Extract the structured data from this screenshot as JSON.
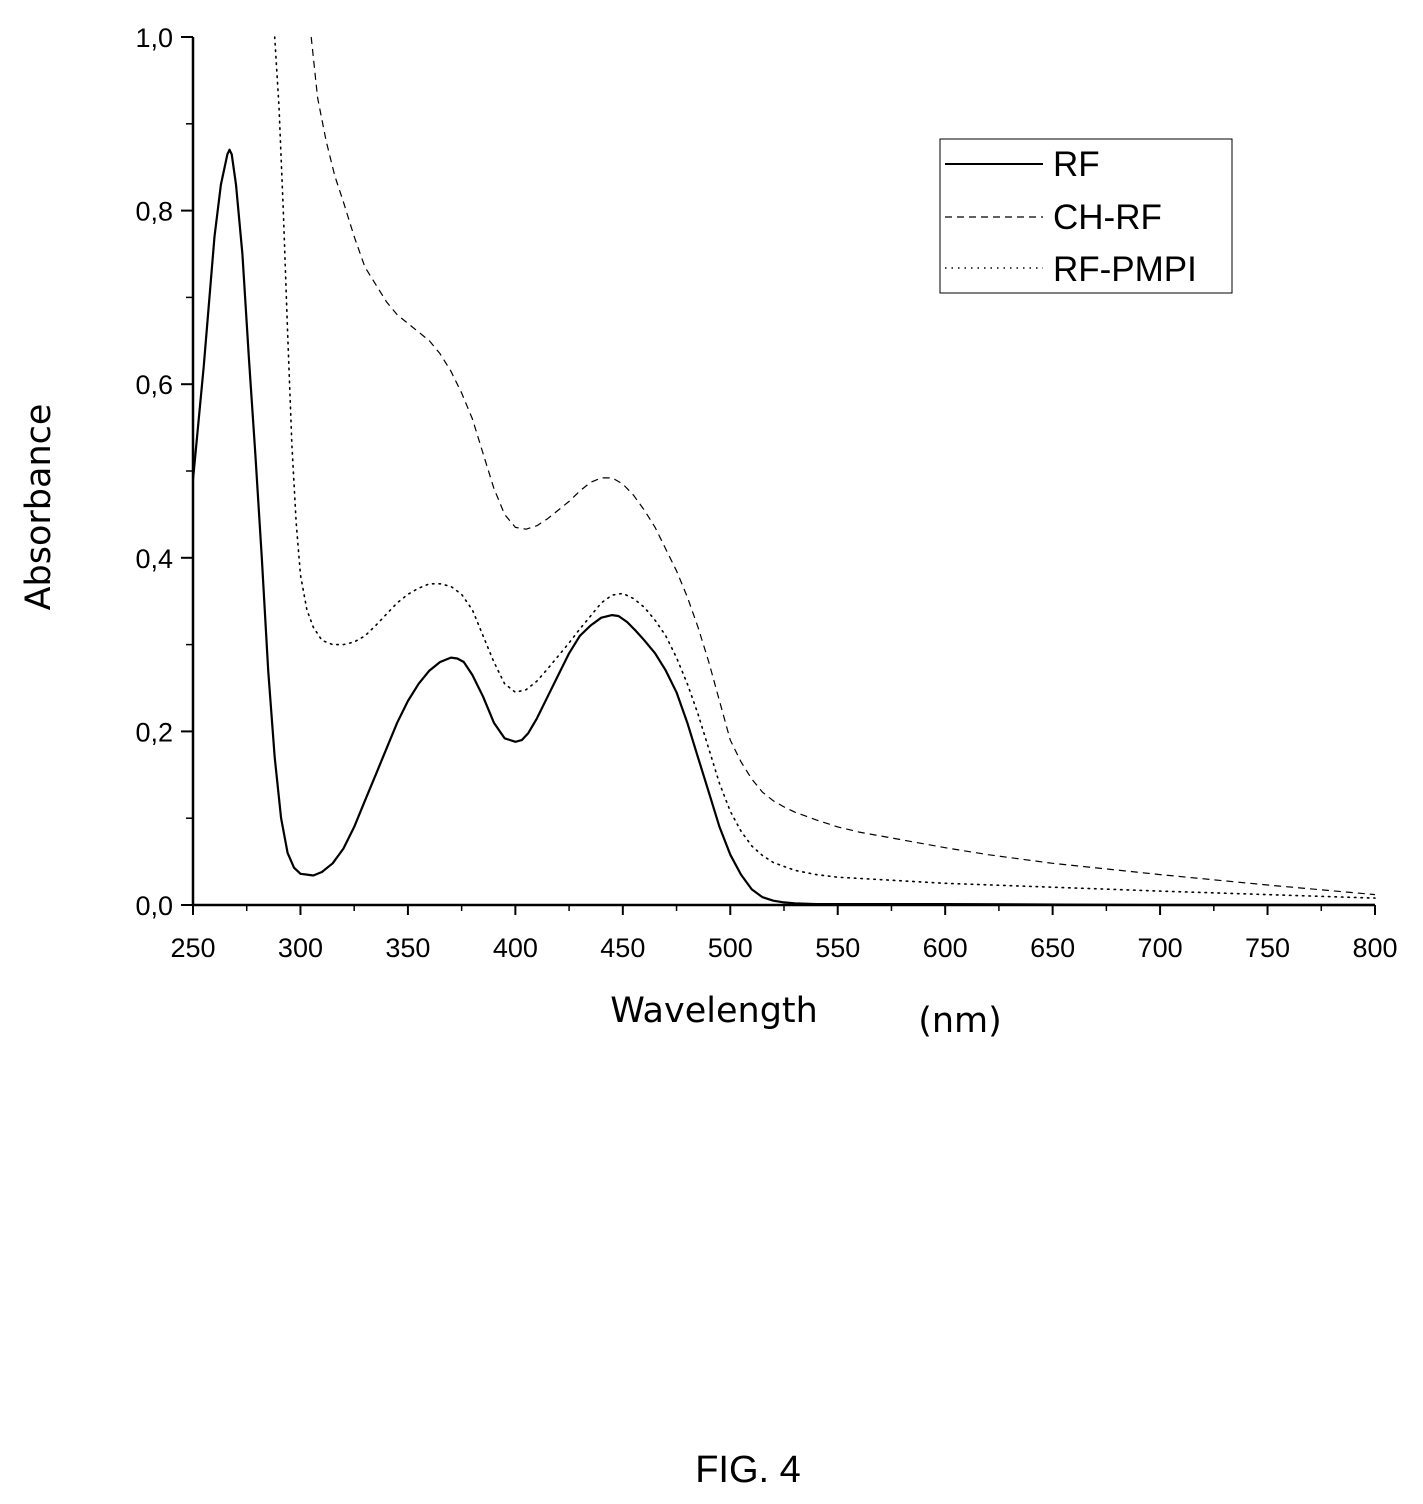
{
  "chart_data": {
    "type": "line",
    "xlabel": "Wavelength",
    "xunit": "(nm)",
    "ylabel": "Absorbance",
    "xlim": [
      250,
      800
    ],
    "ylim": [
      0,
      1.0
    ],
    "xticks": [
      250,
      300,
      350,
      400,
      450,
      500,
      550,
      600,
      650,
      700,
      750,
      800
    ],
    "xtick_labels": [
      "250",
      "300",
      "350",
      "400",
      "450",
      "500",
      "550",
      "600",
      "650",
      "700",
      "750",
      "800"
    ],
    "yticks": [
      0,
      0.2,
      0.4,
      0.6,
      0.8,
      1.0
    ],
    "ytick_labels": [
      "0,0",
      "0,2",
      "0,4",
      "0,6",
      "0,8",
      "1,0"
    ],
    "grid": false,
    "legend_position": "top-right",
    "series": [
      {
        "name": "RF",
        "style": "solid",
        "x": [
          250,
          255,
          260,
          263,
          266,
          267,
          268,
          270,
          273,
          276,
          279,
          282,
          285,
          288,
          291,
          294,
          297,
          300,
          303,
          306,
          310,
          315,
          320,
          325,
          330,
          335,
          340,
          345,
          350,
          355,
          360,
          365,
          370,
          373,
          376,
          380,
          385,
          390,
          395,
          400,
          403,
          406,
          410,
          415,
          420,
          425,
          430,
          435,
          440,
          445,
          448,
          452,
          456,
          460,
          465,
          470,
          475,
          480,
          485,
          490,
          495,
          500,
          505,
          510,
          515,
          520,
          525,
          530,
          540,
          550,
          600,
          700,
          800
        ],
        "y": [
          0.49,
          0.62,
          0.77,
          0.83,
          0.865,
          0.87,
          0.865,
          0.83,
          0.75,
          0.63,
          0.52,
          0.4,
          0.27,
          0.17,
          0.1,
          0.06,
          0.043,
          0.036,
          0.035,
          0.034,
          0.038,
          0.048,
          0.065,
          0.09,
          0.12,
          0.15,
          0.18,
          0.21,
          0.235,
          0.255,
          0.27,
          0.28,
          0.285,
          0.284,
          0.28,
          0.265,
          0.24,
          0.21,
          0.192,
          0.188,
          0.19,
          0.198,
          0.215,
          0.24,
          0.265,
          0.29,
          0.31,
          0.322,
          0.331,
          0.334,
          0.333,
          0.326,
          0.316,
          0.305,
          0.29,
          0.27,
          0.245,
          0.21,
          0.17,
          0.13,
          0.09,
          0.058,
          0.035,
          0.018,
          0.009,
          0.005,
          0.003,
          0.002,
          0.001,
          0.001,
          0.001,
          0.0,
          0.0
        ]
      },
      {
        "name": "CH-RF",
        "style": "dashed",
        "x": [
          305,
          308,
          312,
          316,
          320,
          325,
          330,
          335,
          340,
          345,
          350,
          355,
          360,
          365,
          370,
          375,
          380,
          385,
          390,
          395,
          400,
          405,
          410,
          415,
          420,
          425,
          430,
          435,
          440,
          445,
          450,
          455,
          460,
          465,
          470,
          475,
          480,
          485,
          490,
          495,
          500,
          505,
          510,
          515,
          520,
          525,
          530,
          540,
          550,
          560,
          580,
          600,
          620,
          650,
          700,
          750,
          800
        ],
        "y": [
          1.0,
          0.93,
          0.88,
          0.84,
          0.81,
          0.77,
          0.735,
          0.715,
          0.695,
          0.68,
          0.67,
          0.66,
          0.65,
          0.635,
          0.615,
          0.59,
          0.56,
          0.52,
          0.48,
          0.45,
          0.435,
          0.433,
          0.437,
          0.445,
          0.455,
          0.465,
          0.477,
          0.487,
          0.492,
          0.492,
          0.485,
          0.472,
          0.455,
          0.435,
          0.41,
          0.385,
          0.355,
          0.32,
          0.28,
          0.235,
          0.19,
          0.165,
          0.145,
          0.13,
          0.12,
          0.113,
          0.107,
          0.098,
          0.09,
          0.084,
          0.075,
          0.066,
          0.058,
          0.048,
          0.035,
          0.023,
          0.012
        ]
      },
      {
        "name": "RF-PMPI",
        "style": "dotted",
        "x": [
          288,
          290,
          292,
          294,
          296,
          298,
          300,
          303,
          306,
          310,
          315,
          320,
          325,
          330,
          335,
          340,
          345,
          350,
          355,
          360,
          365,
          370,
          375,
          380,
          385,
          390,
          395,
          400,
          405,
          410,
          415,
          420,
          425,
          430,
          435,
          440,
          445,
          450,
          455,
          460,
          465,
          470,
          475,
          480,
          485,
          490,
          495,
          500,
          505,
          510,
          515,
          520,
          530,
          540,
          550,
          600,
          700,
          800
        ],
        "y": [
          1.0,
          0.92,
          0.8,
          0.66,
          0.53,
          0.44,
          0.38,
          0.34,
          0.32,
          0.305,
          0.3,
          0.3,
          0.303,
          0.31,
          0.322,
          0.335,
          0.348,
          0.358,
          0.365,
          0.37,
          0.37,
          0.367,
          0.358,
          0.34,
          0.31,
          0.28,
          0.255,
          0.245,
          0.248,
          0.258,
          0.272,
          0.287,
          0.302,
          0.318,
          0.333,
          0.348,
          0.357,
          0.359,
          0.353,
          0.343,
          0.328,
          0.31,
          0.285,
          0.255,
          0.22,
          0.18,
          0.14,
          0.108,
          0.085,
          0.068,
          0.057,
          0.049,
          0.04,
          0.035,
          0.032,
          0.025,
          0.016,
          0.008
        ]
      }
    ]
  },
  "caption": "FIG. 4",
  "colors": {
    "ink": "#000000",
    "background": "#ffffff"
  }
}
